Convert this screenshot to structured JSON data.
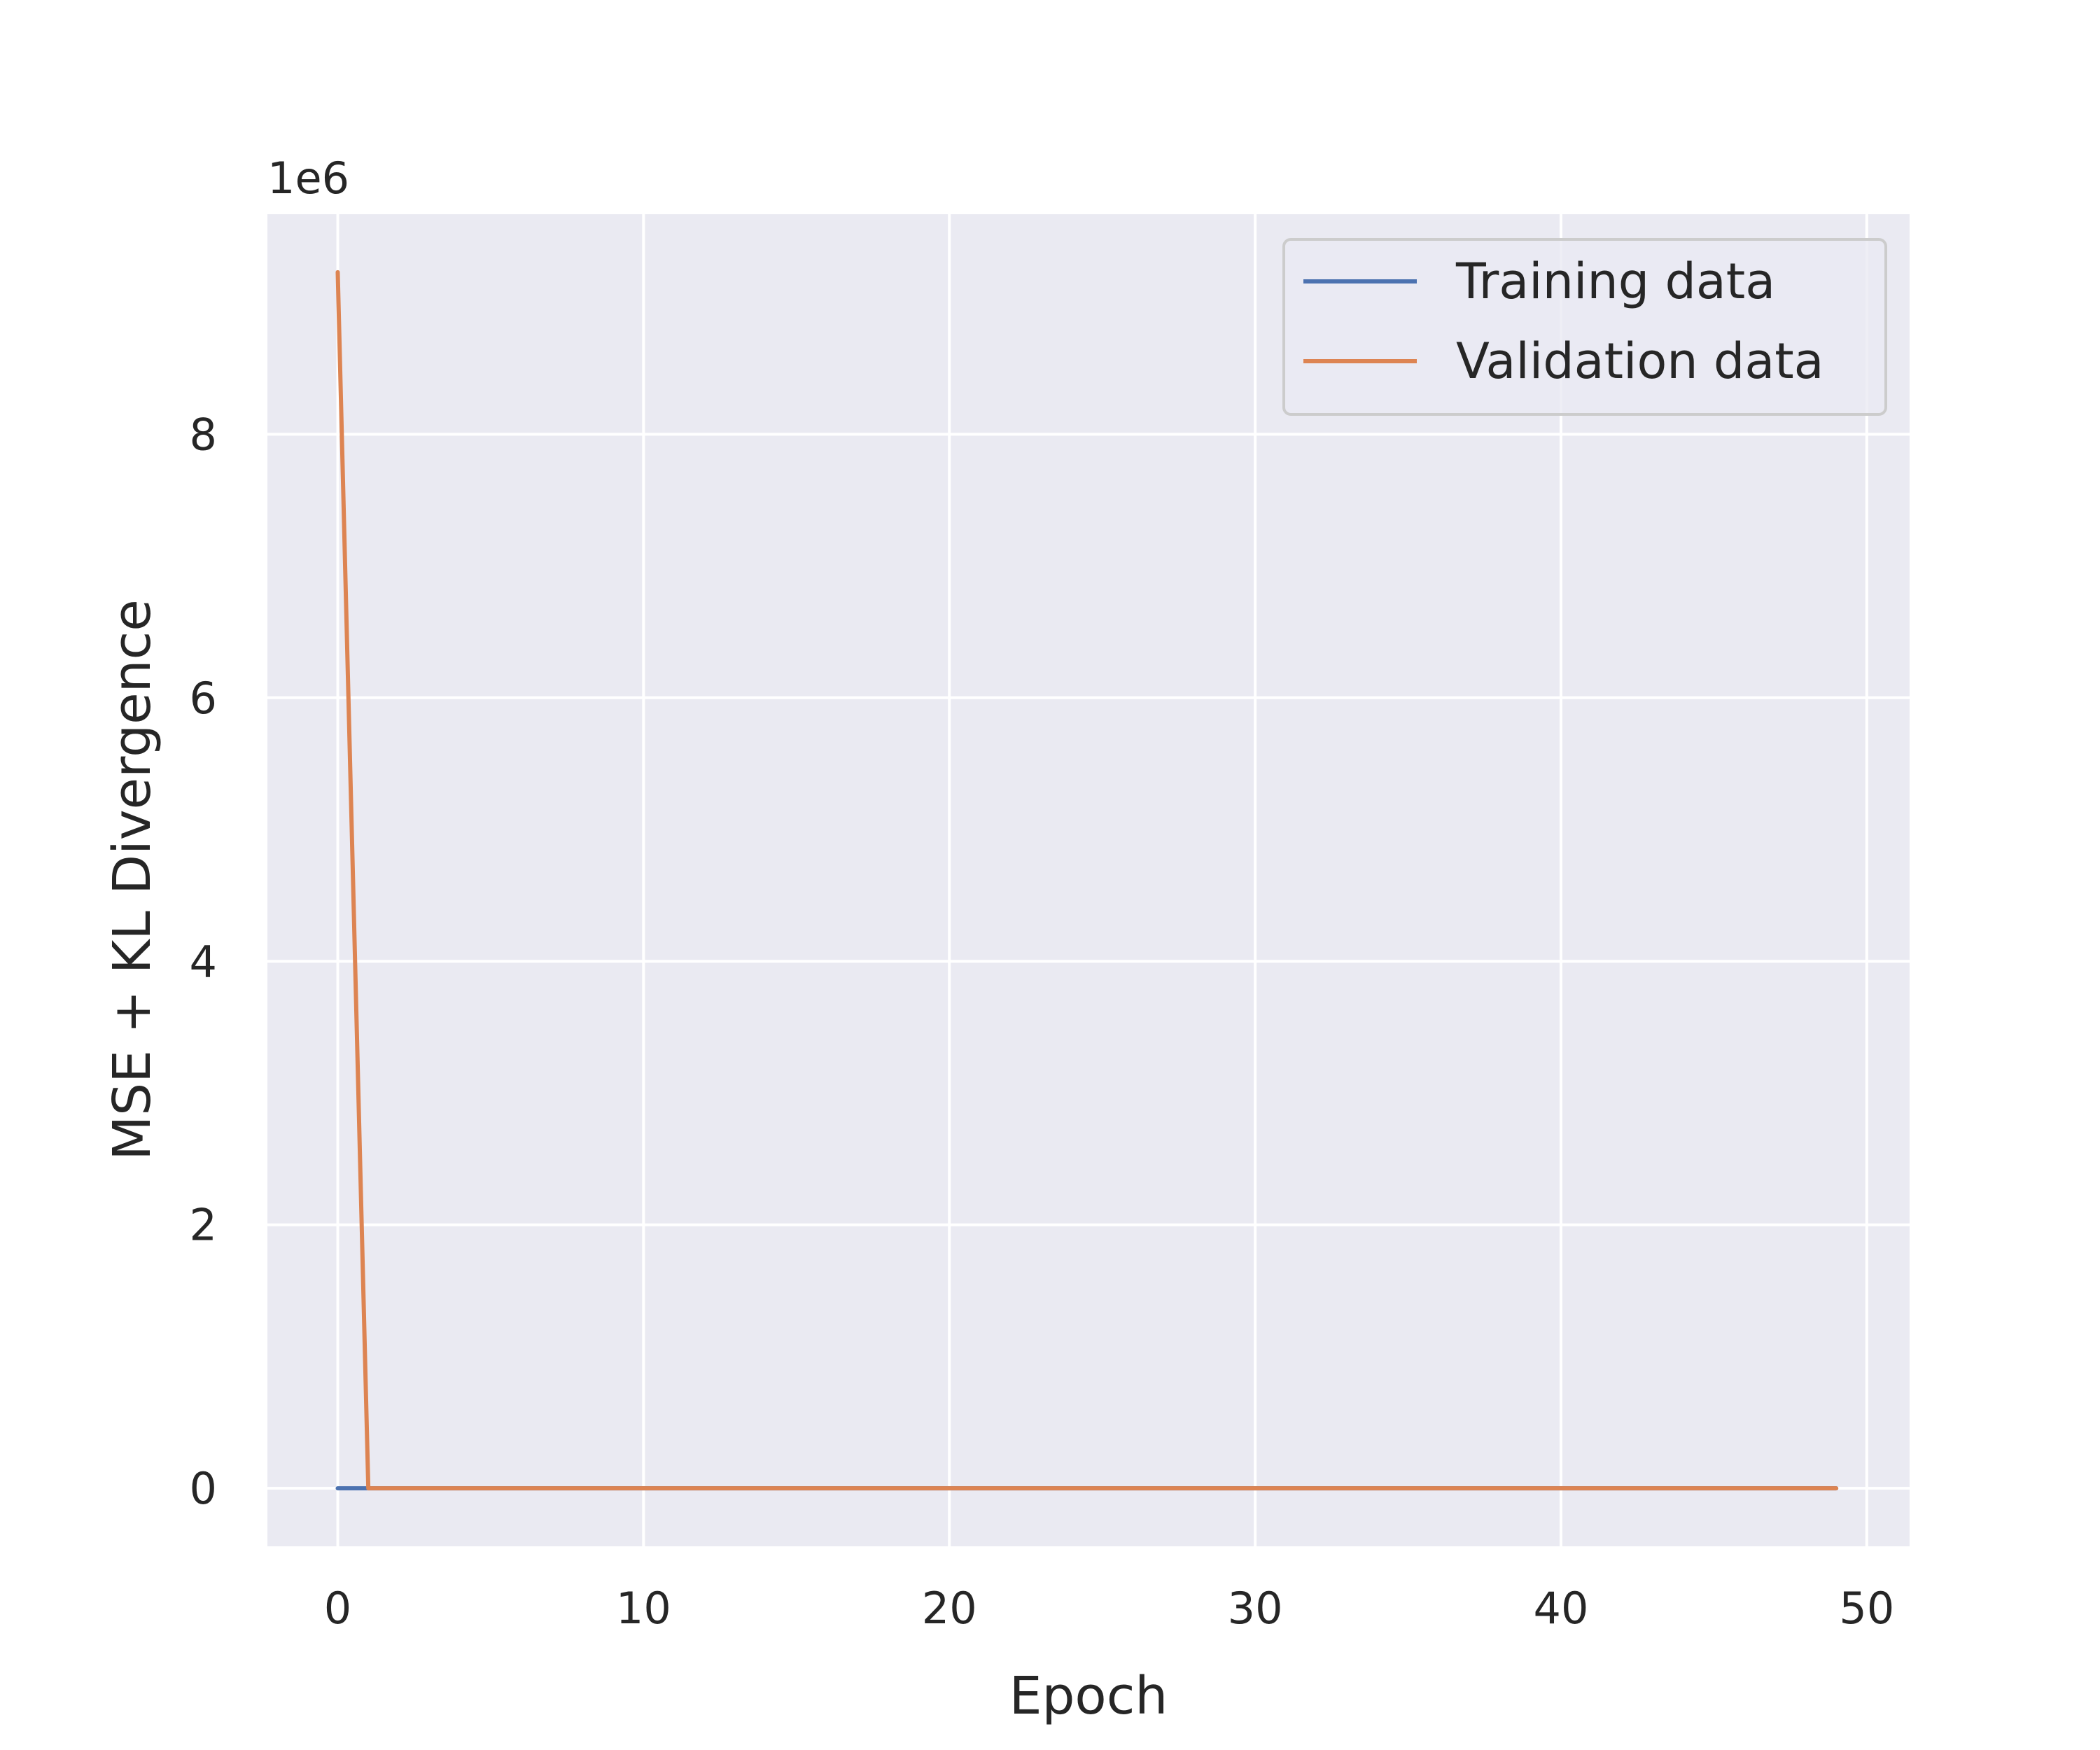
{
  "chart_data": {
    "type": "line",
    "xlabel": "Epoch",
    "ylabel": "MSE + KL Divergence",
    "y_offset_label": "1e6",
    "xlim": [
      -2.3,
      51.4
    ],
    "ylim": [
      -0.44,
      9.67
    ],
    "xticks": [
      0,
      10,
      20,
      30,
      40,
      50
    ],
    "yticks": [
      0,
      2,
      4,
      6,
      8
    ],
    "grid": true,
    "legend_position": "upper right",
    "background_color": "#eaeaf2",
    "grid_color": "#ffffff",
    "series": [
      {
        "name": "Training data",
        "color": "#4c72b0",
        "x": [
          0,
          1,
          49
        ],
        "y": [
          0.0,
          0.0,
          0.0
        ]
      },
      {
        "name": "Validation data",
        "color": "#dd8452",
        "x": [
          0,
          1,
          49
        ],
        "y": [
          9.23,
          0.0,
          0.0
        ]
      }
    ]
  }
}
